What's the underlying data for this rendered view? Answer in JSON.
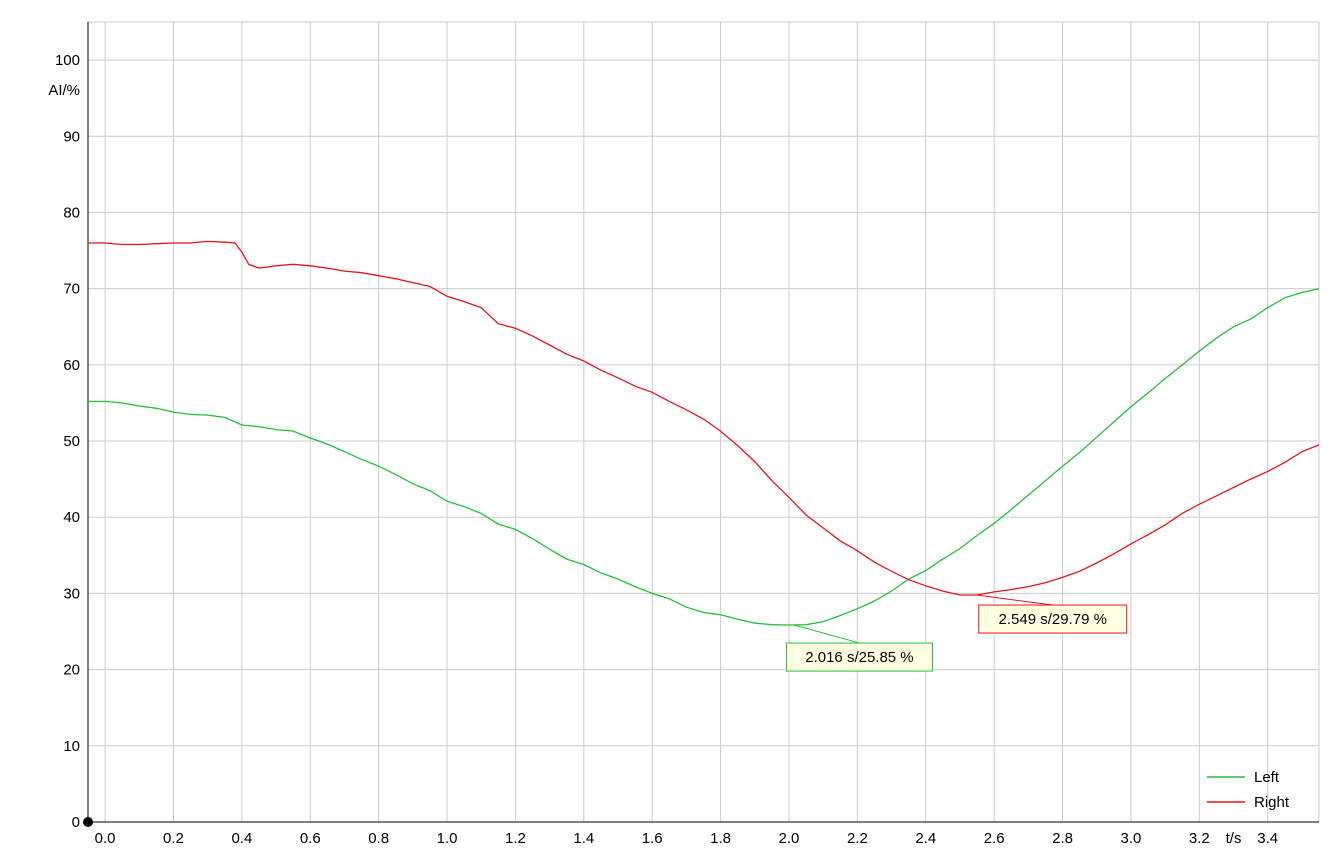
{
  "chart_data": {
    "type": "line",
    "xlabel": "t/s",
    "ylabel": "AI/%",
    "xlim": [
      -0.05,
      3.55
    ],
    "ylim": [
      0,
      105
    ],
    "x_ticks": [
      "0.0",
      "0.2",
      "0.4",
      "0.6",
      "0.8",
      "1.0",
      "1.2",
      "1.4",
      "1.6",
      "1.8",
      "2.0",
      "2.2",
      "2.4",
      "2.6",
      "2.8",
      "3.0",
      "3.2",
      "3.4"
    ],
    "x_tick_values": [
      0.0,
      0.2,
      0.4,
      0.6,
      0.8,
      1.0,
      1.2,
      1.4,
      1.6,
      1.8,
      2.0,
      2.2,
      2.4,
      2.6,
      2.8,
      3.0,
      3.2,
      3.4
    ],
    "y_ticks": [
      0,
      10,
      20,
      30,
      40,
      50,
      60,
      70,
      80,
      90,
      100
    ],
    "grid": true,
    "legend_position": "bottom-right",
    "colors": {
      "Left": "#22c03a",
      "Right": "#e8141c",
      "grid": "#cccccc",
      "axis": "#000000"
    },
    "series": [
      {
        "name": "Left",
        "x": [
          -0.05,
          0.0,
          0.05,
          0.1,
          0.15,
          0.2,
          0.25,
          0.3,
          0.35,
          0.4,
          0.45,
          0.5,
          0.55,
          0.6,
          0.65,
          0.7,
          0.75,
          0.8,
          0.85,
          0.9,
          0.95,
          1.0,
          1.05,
          1.1,
          1.15,
          1.2,
          1.25,
          1.3,
          1.35,
          1.4,
          1.45,
          1.5,
          1.55,
          1.6,
          1.65,
          1.7,
          1.75,
          1.8,
          1.85,
          1.9,
          1.95,
          2.0,
          2.05,
          2.1,
          2.15,
          2.2,
          2.25,
          2.3,
          2.35,
          2.4,
          2.45,
          2.5,
          2.55,
          2.6,
          2.65,
          2.7,
          2.75,
          2.8,
          2.85,
          2.9,
          2.95,
          3.0,
          3.05,
          3.1,
          3.15,
          3.2,
          3.25,
          3.3,
          3.35,
          3.4,
          3.45,
          3.5,
          3.55
        ],
        "y": [
          55.2,
          55.2,
          55.0,
          54.6,
          54.3,
          53.8,
          53.5,
          53.4,
          53.1,
          52.1,
          51.9,
          51.5,
          51.3,
          50.4,
          49.6,
          48.6,
          47.6,
          46.7,
          45.6,
          44.4,
          43.5,
          42.1,
          41.4,
          40.5,
          39.1,
          38.4,
          37.2,
          35.8,
          34.5,
          33.8,
          32.7,
          31.9,
          30.9,
          30.0,
          29.3,
          28.2,
          27.5,
          27.2,
          26.6,
          26.1,
          25.9,
          25.85,
          25.9,
          26.3,
          27.1,
          28.0,
          29.0,
          30.3,
          31.9,
          33.0,
          34.5,
          35.9,
          37.6,
          39.2,
          41.0,
          42.9,
          44.8,
          46.7,
          48.5,
          50.5,
          52.5,
          54.5,
          56.3,
          58.2,
          60.0,
          61.8,
          63.5,
          65.0,
          66.0,
          67.5,
          68.8,
          69.5,
          70.0
        ]
      },
      {
        "name": "Right",
        "x": [
          -0.05,
          0.0,
          0.05,
          0.1,
          0.15,
          0.2,
          0.25,
          0.3,
          0.35,
          0.38,
          0.4,
          0.42,
          0.45,
          0.5,
          0.55,
          0.6,
          0.65,
          0.7,
          0.75,
          0.8,
          0.85,
          0.9,
          0.95,
          1.0,
          1.05,
          1.1,
          1.15,
          1.2,
          1.25,
          1.3,
          1.35,
          1.4,
          1.45,
          1.5,
          1.55,
          1.6,
          1.65,
          1.7,
          1.75,
          1.8,
          1.85,
          1.9,
          1.95,
          2.0,
          2.05,
          2.1,
          2.15,
          2.2,
          2.25,
          2.3,
          2.35,
          2.4,
          2.45,
          2.5,
          2.549,
          2.6,
          2.65,
          2.7,
          2.75,
          2.8,
          2.85,
          2.9,
          2.95,
          3.0,
          3.05,
          3.1,
          3.15,
          3.2,
          3.25,
          3.3,
          3.35,
          3.4,
          3.45,
          3.5,
          3.55
        ],
        "y": [
          76.0,
          76.0,
          75.8,
          75.8,
          75.9,
          76.0,
          76.0,
          76.2,
          76.1,
          76.0,
          74.8,
          73.2,
          72.7,
          73.0,
          73.2,
          73.0,
          72.7,
          72.3,
          72.1,
          71.7,
          71.3,
          70.8,
          70.3,
          69.0,
          68.3,
          67.5,
          65.4,
          64.8,
          63.8,
          62.6,
          61.4,
          60.5,
          59.3,
          58.3,
          57.2,
          56.4,
          55.2,
          54.1,
          52.9,
          51.3,
          49.4,
          47.3,
          44.8,
          42.6,
          40.3,
          38.6,
          36.9,
          35.6,
          34.1,
          32.9,
          31.8,
          31.0,
          30.3,
          29.79,
          29.8,
          30.2,
          30.5,
          30.9,
          31.4,
          32.1,
          32.9,
          34.0,
          35.2,
          36.5,
          37.7,
          39.0,
          40.5,
          41.7,
          42.8,
          43.9,
          45.0,
          46.0,
          47.2,
          48.6,
          49.5
        ]
      }
    ],
    "annotations": [
      {
        "series": "Left",
        "x": 2.016,
        "y": 25.85,
        "label": "2.016 s/25.85 %"
      },
      {
        "series": "Right",
        "x": 2.549,
        "y": 29.79,
        "label": "2.549 s/29.79 %"
      }
    ]
  }
}
